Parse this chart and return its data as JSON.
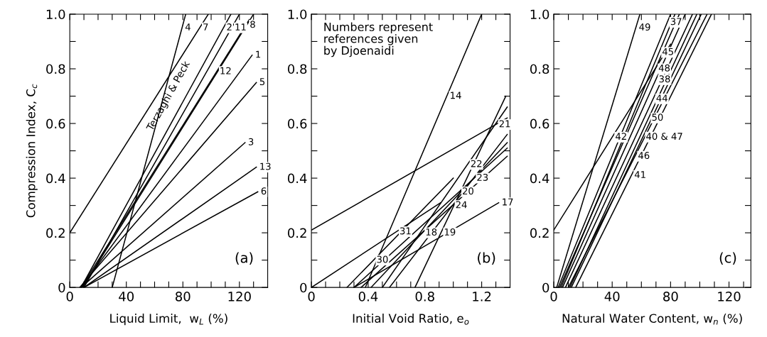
{
  "chart_data": [
    {
      "type": "line",
      "xlabel": "Liquid Limit,  w$_{L}$ (%)",
      "ylabel": "Compression Index, C$_{c}$",
      "xlim": [
        0,
        140
      ],
      "ylim": [
        0,
        1.0
      ],
      "xticks": [
        0,
        {
          "value": 10,
          "label": null
        },
        {
          "value": 20,
          "label": null
        },
        {
          "value": 30,
          "label": null
        },
        40,
        {
          "value": 50,
          "label": null
        },
        {
          "value": 60,
          "label": null
        },
        {
          "value": 70,
          "label": null
        },
        80,
        {
          "value": 90,
          "label": null
        },
        {
          "value": 100,
          "label": null
        },
        {
          "value": 110,
          "label": null
        },
        120,
        {
          "value": 130,
          "label": null
        }
      ],
      "yticks": [
        0,
        {
          "value": 0.1,
          "label": null
        },
        {
          "value": 0.2,
          "label": "0.2"
        },
        {
          "value": 0.3,
          "label": null
        },
        {
          "value": 0.4,
          "label": "0.4"
        },
        {
          "value": 0.5,
          "label": null
        },
        {
          "value": 0.6,
          "label": "0.6"
        },
        {
          "value": 0.7,
          "label": null
        },
        {
          "value": 0.8,
          "label": "0.8"
        },
        {
          "value": 0.9,
          "label": null
        },
        {
          "value": 1.0,
          "label": "1.0"
        }
      ],
      "grid": false,
      "marker": "none",
      "line_style": "solid",
      "series": [
        {
          "color": "#000000",
          "x": [
            30,
            82
          ],
          "values": [
            0,
            1.0
          ]
        },
        {
          "color": "#000000",
          "x": [
            0,
            98
          ],
          "values": [
            0.2,
            1.0
          ]
        },
        {
          "color": "#000000",
          "x": [
            8,
            114
          ],
          "values": [
            0,
            1.0
          ]
        },
        {
          "color": "#000000",
          "x": [
            10,
            120
          ],
          "values": [
            0,
            1.0
          ]
        },
        {
          "color": "#000000",
          "x": [
            9,
            130
          ],
          "values": [
            0,
            1.0
          ]
        },
        {
          "color": "#000000",
          "x": [
            8,
            127
          ],
          "values": [
            0,
            0.98
          ]
        },
        {
          "color": "#000000",
          "x": [
            8,
            129
          ],
          "values": [
            0,
            0.85
          ]
        },
        {
          "color": "#000000",
          "x": [
            7,
            132
          ],
          "values": [
            0,
            0.75
          ]
        },
        {
          "color": "#000000",
          "x": [
            8,
            124
          ],
          "values": [
            0,
            0.53
          ]
        },
        {
          "color": "#000000",
          "x": [
            10,
            132
          ],
          "values": [
            0,
            0.44
          ]
        },
        {
          "color": "#000000",
          "x": [
            10,
            133
          ],
          "values": [
            0,
            0.35
          ]
        }
      ],
      "annotations": [
        "(a)",
        "Terzaghi & Peck",
        {
          "text": "4",
          "x": 79.4,
          "y": 0.95
        },
        {
          "text": "7",
          "x": 91.9,
          "y": 0.95
        },
        {
          "text": "2",
          "x": 108.7,
          "y": 0.95
        },
        {
          "text": "11",
          "x": 114.5,
          "y": 0.95
        },
        {
          "text": "8",
          "x": 125.2,
          "y": 0.96
        },
        {
          "text": "12",
          "x": 103.9,
          "y": 0.79
        },
        {
          "text": "1",
          "x": 129,
          "y": 0.85
        },
        {
          "text": "5",
          "x": 132,
          "y": 0.75
        },
        {
          "text": "3",
          "x": 124,
          "y": 0.53
        },
        {
          "text": "13",
          "x": 132,
          "y": 0.44
        },
        {
          "text": "6",
          "x": 133,
          "y": 0.35
        }
      ]
    },
    {
      "type": "line",
      "xlabel": "Initial Void Ratio, e$_{o}$",
      "xlim": [
        0,
        1.4
      ],
      "ylim": [
        0,
        1.0
      ],
      "xticks": [
        0,
        {
          "value": 0.1,
          "label": null
        },
        {
          "value": 0.2,
          "label": null
        },
        {
          "value": 0.3,
          "label": null
        },
        0.4,
        {
          "value": 0.5,
          "label": null
        },
        {
          "value": 0.6,
          "label": null
        },
        {
          "value": 0.7,
          "label": null
        },
        0.8,
        {
          "value": 0.9,
          "label": null
        },
        {
          "value": 1.0,
          "label": null
        },
        {
          "value": 1.1,
          "label": null
        },
        1.2,
        {
          "value": 1.3,
          "label": null
        }
      ],
      "yticks": [
        0,
        {
          "value": 0.1,
          "label": null
        },
        {
          "value": 0.2,
          "label": "0.2"
        },
        {
          "value": 0.3,
          "label": null
        },
        {
          "value": 0.4,
          "label": "0.4"
        },
        {
          "value": 0.5,
          "label": null
        },
        {
          "value": 0.6,
          "label": "0.6"
        },
        {
          "value": 0.7,
          "label": null
        },
        {
          "value": 0.8,
          "label": "0.8"
        },
        {
          "value": 0.9,
          "label": null
        },
        {
          "value": 1.0,
          "label": "1.0"
        }
      ],
      "grid": false,
      "marker": "none",
      "line_style": "solid",
      "series": [
        {
          "color": "#000000",
          "x": [
            0.38,
            1.2
          ],
          "values": [
            0,
            1.0
          ]
        },
        {
          "color": "#000000",
          "x": [
            0,
            1.38
          ],
          "values": [
            0.21,
            0.62
          ]
        },
        {
          "color": "#000000",
          "x": [
            0,
            0.91
          ],
          "values": [
            0,
            0.31
          ]
        },
        {
          "color": "#000000",
          "x": [
            0.3,
            1.32
          ],
          "values": [
            0,
            0.31
          ]
        },
        {
          "color": "#000000",
          "x": [
            0.73,
            1.37
          ],
          "values": [
            0,
            0.7
          ]
        },
        {
          "color": "#000000",
          "x": [
            0.5,
            1.38
          ],
          "values": [
            0,
            0.66
          ]
        },
        {
          "color": "#000000",
          "x": [
            0.55,
            1.38
          ],
          "values": [
            0,
            0.56
          ]
        },
        {
          "color": "#000000",
          "x": [
            0.3,
            1.38
          ],
          "values": [
            0,
            0.51
          ]
        },
        {
          "color": "#000000",
          "x": [
            0.35,
            1.38
          ],
          "values": [
            0,
            0.48
          ]
        },
        {
          "color": "#000000",
          "x": [
            0.42,
            1.38
          ],
          "values": [
            0,
            0.53
          ]
        },
        {
          "color": "#000000",
          "x": [
            0.25,
            1.0
          ],
          "values": [
            0,
            0.4
          ]
        }
      ],
      "annotations": [
        "(b)",
        "Numbers represent\nreferences given\nby Djoenaidi",
        {
          "text": "14",
          "x": 0.954,
          "y": 0.7
        },
        {
          "text": "21",
          "x": 1.3,
          "y": 0.596
        },
        {
          "text": "31",
          "x": 0.6,
          "y": 0.204
        },
        {
          "text": "17",
          "x": 1.32,
          "y": 0.31
        },
        {
          "text": "19",
          "x": 0.913,
          "y": 0.2
        },
        {
          "text": "22",
          "x": 1.1,
          "y": 0.45
        },
        {
          "text": "23",
          "x": 1.143,
          "y": 0.4
        },
        {
          "text": "20",
          "x": 1.041,
          "y": 0.35
        },
        {
          "text": "24",
          "x": 0.994,
          "y": 0.3
        },
        {
          "text": "18",
          "x": 0.782,
          "y": 0.2
        },
        {
          "text": "30",
          "x": 0.4375,
          "y": 0.1
        }
      ]
    },
    {
      "type": "line",
      "xlabel": "Natural Water Content, w$_{n}$ (%)",
      "xlim": [
        0,
        135
      ],
      "ylim": [
        0,
        1.0
      ],
      "xticks": [
        0,
        {
          "value": 10,
          "label": null
        },
        {
          "value": 20,
          "label": null
        },
        {
          "value": 30,
          "label": null
        },
        40,
        {
          "value": 50,
          "label": null
        },
        {
          "value": 60,
          "label": null
        },
        {
          "value": 70,
          "label": null
        },
        80,
        {
          "value": 90,
          "label": null
        },
        {
          "value": 100,
          "label": null
        },
        {
          "value": 110,
          "label": null
        },
        120,
        {
          "value": 130,
          "label": null
        }
      ],
      "yticks": [
        0,
        {
          "value": 0.1,
          "label": null
        },
        {
          "value": 0.2,
          "label": "0.2"
        },
        {
          "value": 0.3,
          "label": null
        },
        {
          "value": 0.4,
          "label": "0.4"
        },
        {
          "value": 0.5,
          "label": null
        },
        {
          "value": 0.6,
          "label": "0.6"
        },
        {
          "value": 0.7,
          "label": null
        },
        {
          "value": 0.8,
          "label": "0.8"
        },
        {
          "value": 0.9,
          "label": null
        },
        {
          "value": 1.0,
          "label": "1.0"
        }
      ],
      "grid": false,
      "marker": "none",
      "line_style": "solid",
      "series": [
        {
          "color": "#000000",
          "x": [
            2,
            59
          ],
          "values": [
            0,
            1.0
          ]
        },
        {
          "color": "#000000",
          "x": [
            0,
            80
          ],
          "values": [
            0.21,
            0.89
          ]
        },
        {
          "color": "#000000",
          "x": [
            3,
            80
          ],
          "values": [
            0,
            1.0
          ]
        },
        {
          "color": "#000000",
          "x": [
            5,
            83
          ],
          "values": [
            0,
            1.0
          ]
        },
        {
          "color": "#000000",
          "x": [
            4,
            86
          ],
          "values": [
            0,
            1.0
          ]
        },
        {
          "color": "#000000",
          "x": [
            6,
            90
          ],
          "values": [
            0,
            1.0
          ]
        },
        {
          "color": "#000000",
          "x": [
            8,
            95
          ],
          "values": [
            0,
            1.0
          ]
        },
        {
          "color": "#000000",
          "x": [
            11,
            98
          ],
          "values": [
            0,
            1.0
          ]
        },
        {
          "color": "#000000",
          "x": [
            12,
            101
          ],
          "values": [
            0,
            1.0
          ]
        },
        {
          "color": "#000000",
          "x": [
            10,
            105
          ],
          "values": [
            0,
            1.0
          ]
        },
        {
          "color": "#000000",
          "x": [
            15,
            108
          ],
          "values": [
            0,
            1.0
          ]
        }
      ],
      "annotations": [
        "(c)",
        {
          "text": "49",
          "x": 56.2,
          "y": 0.95
        },
        {
          "text": "42",
          "x": 40,
          "y": 0.55
        },
        {
          "text": "37",
          "x": 77.7,
          "y": 0.97
        },
        {
          "text": "45",
          "x": 72.1,
          "y": 0.86
        },
        {
          "text": "48",
          "x": 69.6,
          "y": 0.8
        },
        {
          "text": "38",
          "x": 69.8,
          "y": 0.76
        },
        {
          "text": "44",
          "x": 68.0,
          "y": 0.69
        },
        {
          "text": "50",
          "x": 64.9,
          "y": 0.62
        },
        {
          "text": "40 & 47",
          "x": 61.0,
          "y": 0.55
        },
        {
          "text": "46",
          "x": 55.6,
          "y": 0.48
        },
        {
          "text": "41",
          "x": 53.1,
          "y": 0.41
        }
      ]
    }
  ]
}
